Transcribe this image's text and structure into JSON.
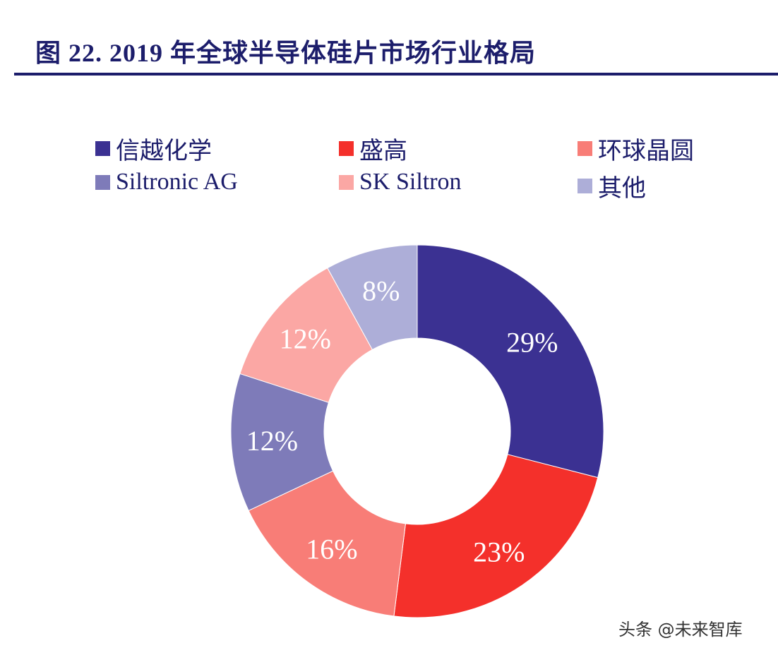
{
  "chart_data": {
    "type": "pie",
    "variant": "donut",
    "title": "图 22. 2019 年全球半导体硅片市场行业格局",
    "legend_position": "top",
    "categories": [
      "信越化学",
      "盛高",
      "环球晶圆",
      "Siltronic AG",
      "SK Siltron",
      "其他"
    ],
    "values": [
      29,
      23,
      16,
      12,
      12,
      8
    ],
    "data_labels": [
      "29%",
      "23%",
      "16%",
      "12%",
      "12%",
      "8%"
    ],
    "colors": [
      "#3b3192",
      "#f4302b",
      "#f87d77",
      "#7e7bb9",
      "#fba7a4",
      "#adaed8"
    ],
    "legend_order": [
      0,
      1,
      2,
      3,
      4,
      5
    ]
  },
  "watermark": "头条 @未来智库"
}
